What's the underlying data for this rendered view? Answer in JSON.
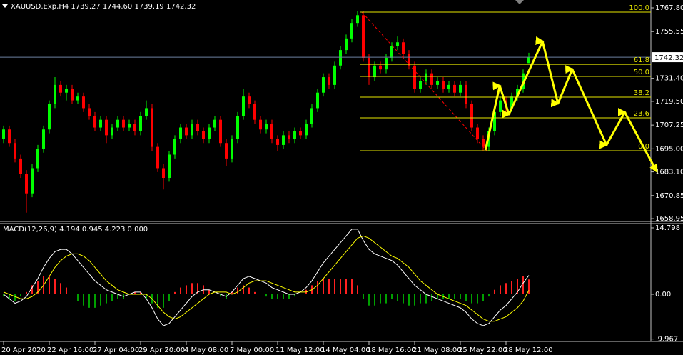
{
  "chart_data": [
    {
      "type": "candlestick",
      "title": "XAUUSD.Exp,H4  1739.27 1744.60 1739.19 1742.32",
      "xlim": [
        -0.625,
        113.375
      ],
      "ylim": [
        1657.5,
        1771.86
      ],
      "yticks": [
        {
          "value": 1767.8,
          "label": "1767.80"
        },
        1755.55,
        {
          "value": 1731.4,
          "label": "1731.40"
        },
        {
          "value": 1719.5,
          "label": "1719.50"
        },
        1707.25,
        {
          "value": 1695,
          "label": "1695.00"
        },
        {
          "value": 1683.1,
          "label": "1683.10"
        },
        1670.85,
        1658.95
      ],
      "xticks": [
        {
          "value": 0,
          "label": "20 Apr 2020"
        },
        {
          "value": 8,
          "label": "22 Apr 16:00"
        },
        {
          "value": 16,
          "label": "27 Apr 04:00"
        },
        {
          "value": 24,
          "label": "29 Apr 20:00"
        },
        {
          "value": 32,
          "label": "4 May 08:00"
        },
        {
          "value": 40,
          "label": "7 May 00:00"
        },
        {
          "value": 48,
          "label": "11 May 12:00"
        },
        {
          "value": 56,
          "label": "14 May 04:00"
        },
        {
          "value": 64,
          "label": "18 May 16:00"
        },
        {
          "value": 72,
          "label": "21 May 08:00"
        },
        {
          "value": 80,
          "label": "25 May 22:00"
        },
        {
          "value": 88,
          "label": "28 May 12:00"
        }
      ],
      "up_color": "#00ff00",
      "down_color": "#ff0000",
      "open": [
        1700,
        1705,
        1698,
        1690,
        1682,
        1672,
        1685,
        1695,
        1705,
        1718,
        1728,
        1724,
        1726,
        1720,
        1722,
        1716,
        1712,
        1706,
        1710,
        1702,
        1706,
        1710,
        1706,
        1708,
        1704,
        1712,
        1716,
        1696,
        1685,
        1680,
        1692,
        1700,
        1706,
        1702,
        1708,
        1704,
        1700,
        1706,
        1710,
        1698,
        1690,
        1700,
        1712,
        1722,
        1718,
        1710,
        1705,
        1708,
        1700,
        1697,
        1702,
        1700,
        1704,
        1702,
        1708,
        1716,
        1724,
        1732,
        1728,
        1738,
        1746,
        1752,
        1760,
        1764,
        1742,
        1732,
        1738,
        1736,
        1742,
        1748,
        1750,
        1744,
        1738,
        1726,
        1730,
        1734,
        1728,
        1730,
        1726,
        1728,
        1724,
        1728,
        1718,
        1706,
        1700,
        1696,
        1704,
        1714,
        1720,
        1716,
        1722,
        1726,
        1739.27
      ],
      "high": [
        1707,
        1707,
        1700,
        1692,
        1684,
        1687,
        1697,
        1707,
        1720,
        1732,
        1730,
        1728,
        1728,
        1724,
        1724,
        1718,
        1714,
        1712,
        1712,
        1708,
        1712,
        1712,
        1710,
        1710,
        1714,
        1720,
        1718,
        1698,
        1687,
        1694,
        1702,
        1708,
        1708,
        1710,
        1710,
        1706,
        1708,
        1712,
        1712,
        1700,
        1702,
        1714,
        1726,
        1724,
        1720,
        1712,
        1710,
        1710,
        1702,
        1704,
        1704,
        1706,
        1706,
        1710,
        1718,
        1726,
        1734,
        1734,
        1740,
        1748,
        1754,
        1762,
        1766,
        1766,
        1744,
        1740,
        1740,
        1744,
        1750,
        1753,
        1752,
        1746,
        1740,
        1732,
        1736,
        1736,
        1732,
        1732,
        1730,
        1730,
        1730,
        1730,
        1720,
        1708,
        1702,
        1706,
        1716,
        1722,
        1722,
        1724,
        1728,
        1736,
        1744.6
      ],
      "low": [
        1698,
        1696,
        1688,
        1680,
        1662,
        1670,
        1683,
        1693,
        1703,
        1716,
        1722,
        1720,
        1718,
        1718,
        1714,
        1710,
        1704,
        1704,
        1698,
        1700,
        1704,
        1704,
        1704,
        1702,
        1702,
        1710,
        1694,
        1683,
        1674,
        1678,
        1690,
        1698,
        1700,
        1700,
        1702,
        1698,
        1698,
        1704,
        1696,
        1686,
        1688,
        1698,
        1710,
        1716,
        1708,
        1703,
        1703,
        1698,
        1694,
        1695,
        1698,
        1698,
        1700,
        1700,
        1706,
        1714,
        1722,
        1726,
        1726,
        1736,
        1744,
        1750,
        1758,
        1740,
        1728,
        1730,
        1734,
        1734,
        1740,
        1746,
        1742,
        1736,
        1724,
        1724,
        1728,
        1726,
        1726,
        1724,
        1724,
        1722,
        1722,
        1716,
        1704,
        1698,
        1694,
        1694,
        1702,
        1712,
        1714,
        1714,
        1720,
        1724,
        1739.19
      ],
      "close": [
        1705,
        1698,
        1690,
        1682,
        1672,
        1685,
        1695,
        1705,
        1718,
        1728,
        1724,
        1726,
        1720,
        1722,
        1716,
        1712,
        1706,
        1710,
        1702,
        1706,
        1710,
        1706,
        1708,
        1704,
        1712,
        1716,
        1696,
        1685,
        1680,
        1692,
        1700,
        1706,
        1702,
        1708,
        1704,
        1700,
        1706,
        1710,
        1698,
        1690,
        1700,
        1712,
        1722,
        1718,
        1710,
        1705,
        1708,
        1700,
        1697,
        1702,
        1700,
        1704,
        1702,
        1708,
        1716,
        1724,
        1732,
        1728,
        1738,
        1746,
        1752,
        1760,
        1764,
        1742,
        1732,
        1738,
        1736,
        1742,
        1748,
        1750,
        1744,
        1738,
        1726,
        1730,
        1734,
        1728,
        1730,
        1726,
        1728,
        1724,
        1728,
        1718,
        1706,
        1700,
        1696,
        1704,
        1714,
        1720,
        1716,
        1722,
        1726,
        1734,
        1742.32
      ],
      "last_price": 1742.32,
      "fibonacci": {
        "color": "#e6e600",
        "levels": [
          {
            "label": "100.0",
            "price": 1765.6
          },
          {
            "label": "61.8",
            "price": 1738.6
          },
          {
            "label": "50.0",
            "price": 1732.4
          },
          {
            "label": "38.2",
            "price": 1721.7
          },
          {
            "label": "23.6",
            "price": 1711.0
          },
          {
            "label": "0.0",
            "price": 1694.0
          }
        ]
      },
      "projection": {
        "color": "#ffff00",
        "x": [
          84.4,
          86.9,
          88.5,
          94.4,
          97.1,
          99.6,
          105.6,
          108.8,
          114.4
        ],
        "y": [
          1694.4,
          1727.6,
          1712.8,
          1750.5,
          1718.4,
          1736.1,
          1697.0,
          1713.9,
          1683.3
        ]
      }
    },
    {
      "type": "macd",
      "title": "MACD(12,26,9) 4.194 0.945 4.223 0.000",
      "xlim": [
        -0.625,
        113.375
      ],
      "ylim": [
        -10.5,
        15.75
      ],
      "yticks": [
        14.798,
        {
          "value": 0,
          "label": "0.00"
        },
        -9.967
      ],
      "up_color": "#ff2020",
      "down_color": "#00a000",
      "main_color": "#ffffff",
      "signal_color": "#ffff00",
      "histogram": [
        -0.5,
        -1,
        -1.5,
        -0.5,
        0.5,
        2,
        3,
        4,
        4,
        3.5,
        2.5,
        1.5,
        0,
        -1.5,
        -2.5,
        -3,
        -3,
        -2.5,
        -2,
        -1.5,
        -1,
        -1,
        0,
        0.5,
        0.5,
        -1,
        -2,
        -3,
        -3,
        -1.5,
        0.5,
        1.5,
        2,
        2.5,
        2.5,
        2,
        1,
        0,
        -0.5,
        -1,
        0.5,
        1.5,
        2,
        1.5,
        0.5,
        0,
        -0.5,
        -1,
        -1,
        -1,
        -1,
        -0.5,
        0,
        1,
        2,
        3,
        3.5,
        3.5,
        3.5,
        3.5,
        3.5,
        3.5,
        2,
        -1,
        -2.5,
        -2.5,
        -2,
        -2,
        -1,
        -1.5,
        -2,
        -2.5,
        -2.5,
        -2,
        -2,
        -1.5,
        -1,
        -1,
        -1,
        -1,
        -1,
        -1.5,
        -2,
        -2,
        -1.5,
        -0.5,
        1,
        2,
        2.5,
        3,
        3.5,
        4,
        3.3
      ],
      "main": [
        0,
        -1,
        -2,
        -1.5,
        -0.5,
        1.5,
        3.5,
        6,
        8,
        9.5,
        10,
        10,
        9,
        7.5,
        6,
        4.5,
        3,
        2,
        1,
        0.5,
        0,
        -0.5,
        0,
        0.5,
        0.5,
        -1,
        -3,
        -5.5,
        -7,
        -6.5,
        -5,
        -3.5,
        -2,
        -0.5,
        0.5,
        1,
        1,
        0.5,
        0,
        -0.5,
        0.5,
        2,
        3.5,
        4,
        3.5,
        3,
        2.5,
        1.5,
        1,
        0.5,
        0,
        0,
        0.5,
        1.5,
        3,
        5,
        7,
        8.5,
        10,
        11.5,
        13,
        14.5,
        14.5,
        12,
        10,
        9,
        8.5,
        8,
        7.5,
        6.5,
        5,
        3.5,
        2,
        1,
        0,
        -0.5,
        -1,
        -1.5,
        -2,
        -2.5,
        -3,
        -4,
        -5.5,
        -6.5,
        -7,
        -6.5,
        -5,
        -3.5,
        -2.5,
        -1,
        0.5,
        2.5,
        4.2
      ],
      "signal": [
        0.5,
        0,
        -0.5,
        -1,
        -1,
        -0.5,
        0.5,
        2,
        4,
        6,
        7.5,
        8.5,
        9,
        9,
        8.5,
        7.5,
        6,
        4.5,
        3,
        2,
        1,
        0.5,
        0,
        0,
        0,
        0,
        -1,
        -2.5,
        -4,
        -5,
        -5.5,
        -5,
        -4,
        -3,
        -2,
        -1,
        0,
        0.5,
        0.5,
        0.5,
        0,
        0.5,
        1.5,
        2.5,
        3,
        3,
        3,
        2.5,
        2,
        1.5,
        1,
        0.5,
        0.5,
        0.5,
        1,
        2,
        3.5,
        5,
        6.5,
        8,
        9.5,
        11,
        12.5,
        13,
        12.5,
        11.5,
        10.5,
        9.5,
        8.5,
        8,
        7,
        6,
        4.5,
        3,
        2,
        1,
        0,
        -0.5,
        -1,
        -1.5,
        -2,
        -2.5,
        -3.5,
        -4.5,
        -5.5,
        -6,
        -6,
        -5.5,
        -5,
        -4,
        -3,
        -1.5,
        0.9
      ]
    }
  ]
}
